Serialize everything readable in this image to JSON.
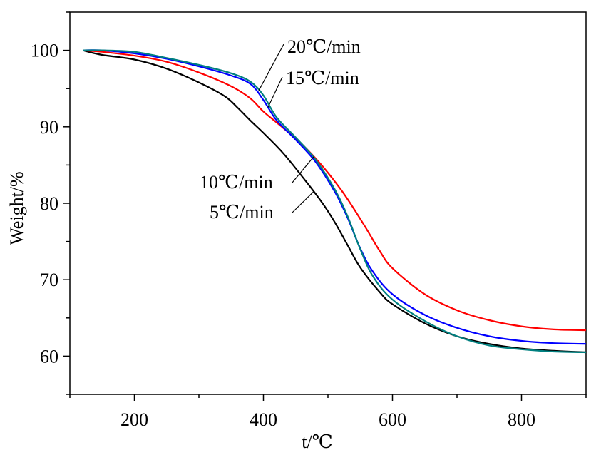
{
  "chart_data": {
    "type": "line",
    "xlabel": "t/℃",
    "ylabel": "Weight/%",
    "xlim": [
      100,
      900
    ],
    "ylim": [
      55,
      105
    ],
    "xticks": [
      200,
      400,
      600,
      800
    ],
    "xtick_labels": [
      "200",
      "400",
      "600",
      "800"
    ],
    "yticks": [
      60,
      70,
      80,
      90,
      100
    ],
    "ytick_labels": [
      "60",
      "70",
      "80",
      "90",
      "100"
    ],
    "grid": false,
    "legend": "none",
    "series": [
      {
        "name": "5℃/min",
        "color": "#000000",
        "x": [
          120,
          150,
          200,
          250,
          300,
          340,
          360,
          380,
          400,
          430,
          460,
          490,
          510,
          530,
          550,
          580,
          600,
          650,
          700,
          750,
          800,
          850,
          900
        ],
        "y": [
          100,
          99.4,
          98.8,
          97.6,
          95.8,
          94,
          92.5,
          90.8,
          89.2,
          86.6,
          83.5,
          80.2,
          77.6,
          74.6,
          71.6,
          68.4,
          66.8,
          64.3,
          62.6,
          61.6,
          61.0,
          60.7,
          60.5
        ]
      },
      {
        "name": "10℃/min",
        "color": "#ff0000",
        "x": [
          120,
          150,
          200,
          250,
          300,
          350,
          380,
          400,
          430,
          460,
          490,
          520,
          540,
          560,
          580,
          600,
          650,
          700,
          750,
          800,
          850,
          900
        ],
        "y": [
          100,
          99.8,
          99.3,
          98.5,
          97.1,
          95.3,
          93.7,
          92.0,
          89.9,
          87.7,
          85.0,
          81.8,
          79.3,
          76.6,
          73.8,
          71.5,
          68.1,
          66.0,
          64.7,
          63.9,
          63.5,
          63.4
        ]
      },
      {
        "name": "15℃/min",
        "color": "#0000ff",
        "x": [
          120,
          150,
          200,
          250,
          300,
          350,
          380,
          400,
          420,
          450,
          480,
          510,
          530,
          550,
          570,
          600,
          650,
          700,
          750,
          800,
          850,
          900
        ],
        "y": [
          100,
          100,
          99.6,
          98.9,
          97.9,
          96.7,
          95.6,
          93.5,
          90.9,
          88.3,
          85.5,
          81.6,
          78.2,
          74.1,
          71.0,
          68.1,
          65.4,
          63.7,
          62.6,
          62.0,
          61.7,
          61.6
        ]
      },
      {
        "name": "20℃/min",
        "color": "#008080",
        "x": [
          120,
          150,
          200,
          250,
          300,
          350,
          380,
          400,
          420,
          450,
          480,
          510,
          530,
          550,
          570,
          600,
          650,
          700,
          750,
          800,
          850,
          900
        ],
        "y": [
          100,
          100,
          99.8,
          99.0,
          98.1,
          97.0,
          95.9,
          94.1,
          91.3,
          88.6,
          85.8,
          81.9,
          78.4,
          74.0,
          70.4,
          67.4,
          64.6,
          62.6,
          61.4,
          60.9,
          60.6,
          60.5
        ]
      }
    ],
    "annotations": [
      {
        "text": "20℃/min"
      },
      {
        "text": "15℃/min"
      },
      {
        "text": "10℃/min"
      },
      {
        "text": "5℃/min"
      }
    ]
  }
}
